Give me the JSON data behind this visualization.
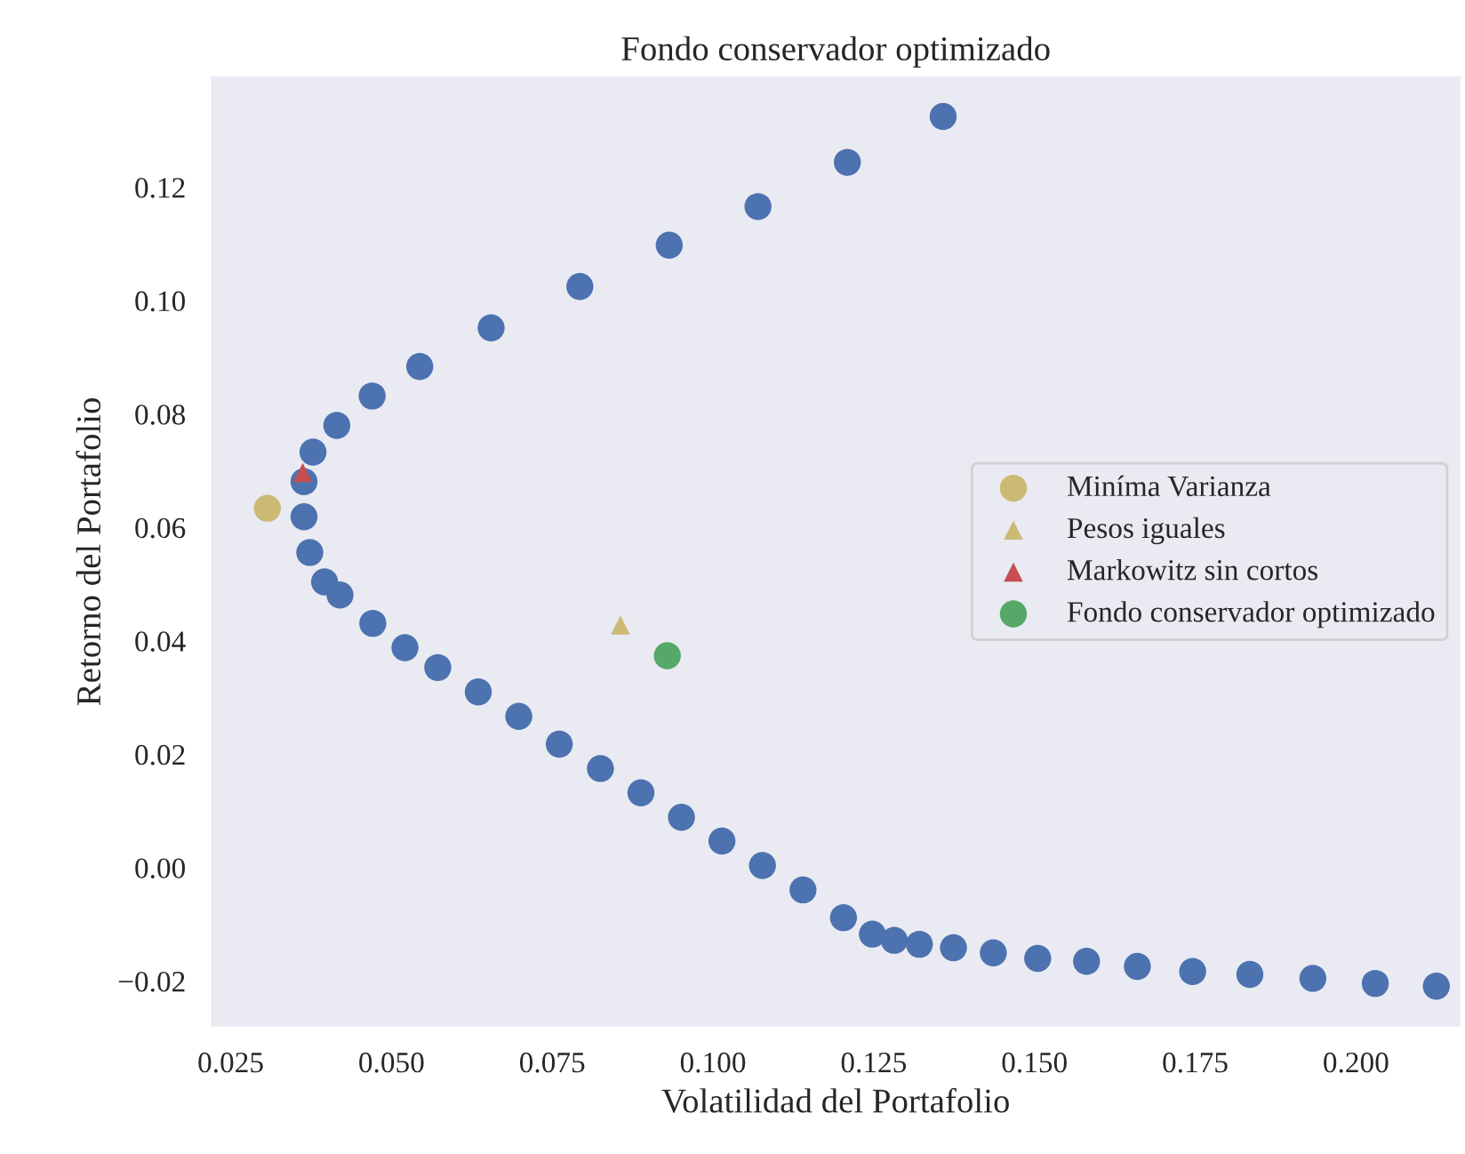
{
  "chart_data": {
    "type": "scatter",
    "title": "Fondo conservador optimizado",
    "xlabel": "Volatilidad del Portafolio",
    "ylabel": "Retorno del Portafolio",
    "xlim": [
      0.0217,
      0.2165
    ],
    "ylim": [
      -0.0283,
      0.1398
    ],
    "xticks": [
      {
        "value": 0.025,
        "label": "0.025"
      },
      {
        "value": 0.05,
        "label": "0.050"
      },
      {
        "value": 0.075,
        "label": "0.075"
      },
      {
        "value": 0.1,
        "label": "0.100"
      },
      {
        "value": 0.125,
        "label": "0.125"
      },
      {
        "value": 0.15,
        "label": "0.150"
      },
      {
        "value": 0.175,
        "label": "0.175"
      },
      {
        "value": 0.2,
        "label": "0.200"
      }
    ],
    "yticks": [
      {
        "value": -0.02,
        "label": "−0.02"
      },
      {
        "value": 0.0,
        "label": "0.00"
      },
      {
        "value": 0.02,
        "label": "0.02"
      },
      {
        "value": 0.04,
        "label": "0.04"
      },
      {
        "value": 0.06,
        "label": "0.06"
      },
      {
        "value": 0.08,
        "label": "0.08"
      },
      {
        "value": 0.1,
        "label": "0.10"
      },
      {
        "value": 0.12,
        "label": "0.12"
      }
    ],
    "grid": false,
    "legend": "right",
    "series": [
      {
        "color": "#4c72b0",
        "marker": "circle",
        "x": [
          0.1358,
          0.1209,
          0.107,
          0.0932,
          0.0793,
          0.0655,
          0.0544,
          0.047,
          0.0415,
          0.0378,
          0.0364,
          0.0364,
          0.0373,
          0.0396,
          0.042,
          0.0471,
          0.0521,
          0.0572,
          0.0635,
          0.0698,
          0.0761,
          0.0825,
          0.0888,
          0.0951,
          0.1014,
          0.1077,
          0.114,
          0.1203,
          0.1248,
          0.1282,
          0.1321,
          0.1374,
          0.1436,
          0.1505,
          0.1581,
          0.166,
          0.1746,
          0.1835,
          0.1933,
          0.203,
          0.2125
        ],
        "values": [
          0.1325,
          0.1244,
          0.1166,
          0.1098,
          0.1025,
          0.0952,
          0.0884,
          0.0832,
          0.078,
          0.0733,
          0.0681,
          0.0619,
          0.0556,
          0.0504,
          0.0481,
          0.0431,
          0.0388,
          0.0353,
          0.031,
          0.0267,
          0.0218,
          0.0175,
          0.0132,
          0.0089,
          0.0047,
          0.0004,
          -0.0039,
          -0.0088,
          -0.0117,
          -0.0128,
          -0.0135,
          -0.0141,
          -0.015,
          -0.016,
          -0.0165,
          -0.0174,
          -0.0183,
          -0.0188,
          -0.0195,
          -0.0204,
          -0.0209
        ]
      },
      {
        "name": "Miníma Varianza",
        "color": "#ccb974",
        "marker": "circle",
        "x": [
          0.0307
        ],
        "values": [
          0.0634
        ]
      },
      {
        "name": "Pesos iguales",
        "color": "#ccb974",
        "marker": "triangle",
        "x": [
          0.0856
        ],
        "values": [
          0.0428
        ]
      },
      {
        "name": "Markowitz sin cortos",
        "color": "#c44e52",
        "marker": "triangle",
        "x": [
          0.0362
        ],
        "values": [
          0.0697
        ]
      },
      {
        "name": "Fondo conservador optimizado",
        "color": "#55a868",
        "marker": "circle",
        "x": [
          0.0929
        ],
        "values": [
          0.0374
        ]
      }
    ]
  }
}
